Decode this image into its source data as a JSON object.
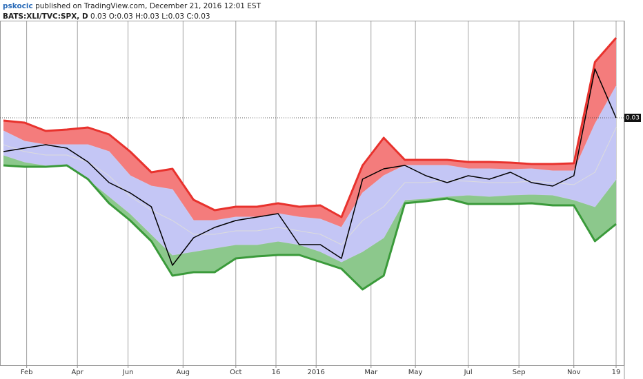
{
  "header": {
    "author": "pskocic",
    "published": "published on TradingView.com, December 21, 2016 12:01 EST",
    "symbol": "BATS:XLI/TVC:SPX, D",
    "ohlc": "0.03 O:0.03 H:0.03 L:0.03 C:0.03"
  },
  "chart_data": {
    "type": "line",
    "xlim": [
      0,
      29
    ],
    "xticks": [
      {
        "value": 1.1,
        "label": "Feb"
      },
      {
        "value": 3.5,
        "label": "Apr"
      },
      {
        "value": 5.9,
        "label": "Jun"
      },
      {
        "value": 8.5,
        "label": "Aug"
      },
      {
        "value": 11.0,
        "label": "Oct"
      },
      {
        "value": 12.9,
        "label": "16"
      },
      {
        "value": 14.8,
        "label": "2016"
      },
      {
        "value": 17.4,
        "label": "Mar"
      },
      {
        "value": 19.5,
        "label": "May"
      },
      {
        "value": 22.0,
        "label": "Jul"
      },
      {
        "value": 24.4,
        "label": "Sep"
      },
      {
        "value": 27.0,
        "label": "Nov"
      },
      {
        "value": 29,
        "label": "19"
      }
    ],
    "ylim": [
      0.02641,
      0.03141
    ],
    "yticks": [
      0.03
    ],
    "bands": [
      {
        "color": "#e8322d",
        "fill": "#f47c7c",
        "line_width": 3,
        "values": [
          0.02996,
          0.02993,
          0.02981,
          0.02983,
          0.02986,
          0.02976,
          0.02951,
          0.02921,
          0.02926,
          0.02881,
          0.02866,
          0.02871,
          0.02871,
          0.02876,
          0.02871,
          0.02873,
          0.02856,
          0.02931,
          0.02971,
          0.02939,
          0.02939,
          0.02939,
          0.02936,
          0.02936,
          0.02935,
          0.02933,
          0.02933,
          0.02934,
          0.03081,
          0.03116
        ]
      },
      {
        "color": "#c9c9f0",
        "fill": "#c4c6f5",
        "line_width": 1,
        "values": [
          0.02981,
          0.02966,
          0.02961,
          0.02961,
          0.02961,
          0.02951,
          0.02916,
          0.02901,
          0.02896,
          0.02851,
          0.02851,
          0.02856,
          0.02856,
          0.02861,
          0.02856,
          0.02853,
          0.02841,
          0.02891,
          0.02916,
          0.02931,
          0.02931,
          0.02931,
          0.02926,
          0.02926,
          0.02925,
          0.02926,
          0.02923,
          0.02923,
          0.02991,
          0.03046
        ]
      },
      {
        "color": "#dcdcdc",
        "fill": "#c4c6f5",
        "line_width": 1,
        "values": [
          0.02961,
          0.02951,
          0.02946,
          0.02946,
          0.02936,
          0.02916,
          0.02886,
          0.02866,
          0.02851,
          0.02831,
          0.02831,
          0.02836,
          0.02836,
          0.02841,
          0.02836,
          0.02831,
          0.02816,
          0.02851,
          0.02871,
          0.02906,
          0.02906,
          0.02909,
          0.02908,
          0.02906,
          0.02906,
          0.02908,
          0.02906,
          0.02903,
          0.02921,
          0.02986
        ]
      },
      {
        "color": "#c9c9f0",
        "fill": "#8cc88c",
        "line_width": 1,
        "values": [
          0.02946,
          0.02936,
          0.02931,
          0.02931,
          0.02911,
          0.02886,
          0.02861,
          0.02831,
          0.02801,
          0.02806,
          0.02811,
          0.02816,
          0.02816,
          0.02821,
          0.02816,
          0.02806,
          0.02791,
          0.02806,
          0.02826,
          0.02881,
          0.02883,
          0.02886,
          0.02888,
          0.02886,
          0.02888,
          0.02889,
          0.02888,
          0.02881,
          0.02871,
          0.02911
        ]
      },
      {
        "color": "#3a9a3a",
        "line_width": 3,
        "values": [
          0.02931,
          0.02929,
          0.02929,
          0.02931,
          0.02911,
          0.02876,
          0.02851,
          0.02821,
          0.02771,
          0.02776,
          0.02776,
          0.02796,
          0.02799,
          0.02801,
          0.02801,
          0.02791,
          0.02781,
          0.02751,
          0.02771,
          0.02876,
          0.02879,
          0.02883,
          0.02875,
          0.02875,
          0.02875,
          0.02876,
          0.02873,
          0.02873,
          0.02821,
          0.02846
        ]
      }
    ],
    "series": [
      {
        "color": "#000000",
        "values": [
          0.02951,
          0.02956,
          0.02961,
          0.02956,
          0.02936,
          0.02906,
          0.02891,
          0.02871,
          0.02786,
          0.02826,
          0.02841,
          0.02851,
          0.02856,
          0.02861,
          0.02816,
          0.02816,
          0.02796,
          0.02911,
          0.02926,
          0.02931,
          0.02916,
          0.02906,
          0.02916,
          0.02911,
          0.02921,
          0.02906,
          0.02901,
          0.02916,
          0.03071,
          0.03
        ]
      }
    ]
  }
}
